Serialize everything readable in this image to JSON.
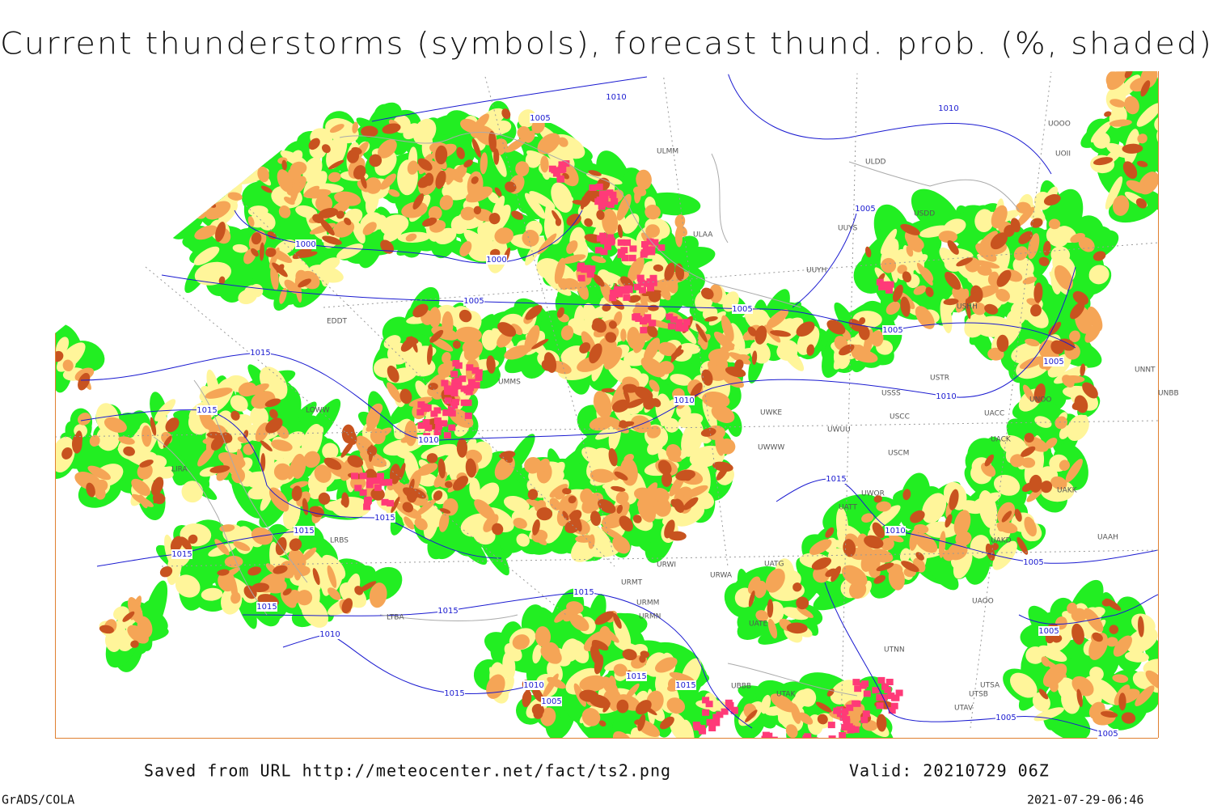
{
  "header": {
    "title": "Current thunderstorms (symbols), forecast thund. prob. (%, shaded)"
  },
  "footer": {
    "saved_from": "Saved from URL http://meteocenter.net/fact/ts2.png",
    "valid": "Valid: 20210729 06Z",
    "software": "GrADS/COLA",
    "timestamp": "2021-07-29-06:46"
  },
  "stations": [
    "ULMM",
    "ULAA",
    "ULDD",
    "UUYS",
    "UUYH",
    "USDD",
    "USHH",
    "UMMS",
    "UWWW",
    "UWKE",
    "UWUU",
    "USCM",
    "USCC",
    "USSS",
    "USTR",
    "UNOO",
    "UACC",
    "UACK",
    "UATT",
    "UWOR",
    "UAKK",
    "UAKD",
    "UATG",
    "URWA",
    "URWI",
    "URMT",
    "URMM",
    "URMN",
    "UATE",
    "UTNN",
    "UTAK",
    "UBBB",
    "UTSA",
    "UTSB",
    "UTAV",
    "UAAH",
    "UAOO",
    "EDDT",
    "LOWW",
    "LIRA",
    "LRBS",
    "LTBA",
    "UNNT",
    "UNBB",
    "UOOO",
    "UOII"
  ],
  "isobars": [
    "1010",
    "1005",
    "1010",
    "1005",
    "1000",
    "1000",
    "1005",
    "1005",
    "1005",
    "1015",
    "1015",
    "1010",
    "1010",
    "1010",
    "1005",
    "1015",
    "1015",
    "1015",
    "1015",
    "1010",
    "1005",
    "1015",
    "1015",
    "1015",
    "1010",
    "1015",
    "1015",
    "1010",
    "1005",
    "1015",
    "1005",
    "1005",
    "1005"
  ]
}
